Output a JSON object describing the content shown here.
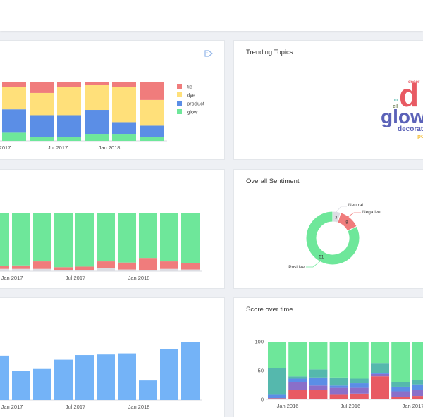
{
  "cards": {
    "c1": {
      "title": ""
    },
    "c2": {
      "title": "Trending Topics"
    },
    "c3": {
      "title": ""
    },
    "c4": {
      "title": "Overall Sentiment"
    },
    "c5": {
      "title": ""
    },
    "c6": {
      "title": "Score over time"
    }
  },
  "colors": {
    "tie": "#f07c7c",
    "dye": "#ffe07a",
    "product": "#5b8ee6",
    "glow": "#6ee79a",
    "neutral": "#dcdde3",
    "negative": "#f07c7c",
    "positive": "#6ee79a",
    "bar": "#74b3f7",
    "teal": "#55b8ad",
    "red2": "#e85a63"
  },
  "wordcloud": {
    "words": [
      {
        "text": "d",
        "color": "#e85a63"
      },
      {
        "text": "glow",
        "color": "#5b62b8"
      },
      {
        "text": "decorat",
        "color": "#5b62b8"
      },
      {
        "text": "po",
        "color": "#f5c242"
      },
      {
        "text": "decor",
        "color": "#e85a63"
      },
      {
        "text": "cr",
        "color": "#55b8ad"
      },
      {
        "text": "ell",
        "color": "#6e7f55"
      }
    ]
  },
  "chart_data": [
    {
      "type": "bar",
      "stacked": true,
      "normalized": true,
      "ticks": [
        "2017",
        "Jul 2017",
        "Jan 2018"
      ],
      "legend": [
        "tie",
        "dye",
        "product",
        "glow"
      ],
      "legend_position": "right",
      "series": [
        {
          "name": "tie",
          "values": [
            0.08,
            0.18,
            0.08,
            0.04,
            0.08,
            0.3
          ]
        },
        {
          "name": "dye",
          "values": [
            0.38,
            0.38,
            0.48,
            0.43,
            0.6,
            0.44
          ]
        },
        {
          "name": "product",
          "values": [
            0.4,
            0.38,
            0.38,
            0.41,
            0.2,
            0.2
          ]
        },
        {
          "name": "glow",
          "values": [
            0.14,
            0.06,
            0.06,
            0.12,
            0.12,
            0.06
          ]
        }
      ]
    },
    {
      "type": "pie",
      "donut": true,
      "labels": [
        "Neutral",
        "Negative",
        "Positive"
      ],
      "values": [
        3,
        8,
        51
      ],
      "value_labels": [
        "3",
        "8",
        "51"
      ]
    },
    {
      "type": "bar",
      "stacked": true,
      "normalized": true,
      "ticks": [
        "Jan 2017",
        "Jul 2017",
        "Jan 2018"
      ],
      "series": [
        {
          "name": "neutral",
          "values": [
            0.04,
            0.04,
            0.04,
            0.02,
            0.02,
            0.05,
            0.03,
            0.02,
            0.04,
            0.03
          ]
        },
        {
          "name": "negative",
          "values": [
            0.05,
            0.06,
            0.13,
            0.05,
            0.06,
            0.12,
            0.12,
            0.21,
            0.13,
            0.11
          ]
        },
        {
          "name": "positive",
          "values": [
            0.91,
            0.9,
            0.83,
            0.93,
            0.92,
            0.83,
            0.85,
            0.77,
            0.83,
            0.86
          ]
        }
      ]
    },
    {
      "type": "bar",
      "ticks": [
        "Jan 2017",
        "Jul 2017",
        "Jan 2018"
      ],
      "values": [
        77,
        50,
        54,
        70,
        78,
        79,
        81,
        34,
        88,
        100
      ],
      "ylim": [
        0,
        100
      ]
    },
    {
      "type": "bar",
      "stacked": true,
      "yticks": [
        "100",
        "50",
        "0"
      ],
      "ylim": [
        0,
        100
      ],
      "ticks": [
        "Jan 2016",
        "Jul 2016",
        "Jan 2017"
      ],
      "series": [
        {
          "name": "red",
          "values": [
            2,
            16,
            16,
            8,
            10,
            40,
            4,
            6
          ]
        },
        {
          "name": "purple",
          "values": [
            0,
            14,
            8,
            12,
            10,
            4,
            10,
            10
          ]
        },
        {
          "name": "blue",
          "values": [
            6,
            6,
            14,
            4,
            8,
            2,
            8,
            10
          ]
        },
        {
          "name": "teal",
          "values": [
            46,
            4,
            14,
            14,
            8,
            16,
            8,
            8
          ]
        },
        {
          "name": "green",
          "values": [
            46,
            60,
            48,
            62,
            64,
            38,
            70,
            66
          ]
        }
      ]
    }
  ]
}
